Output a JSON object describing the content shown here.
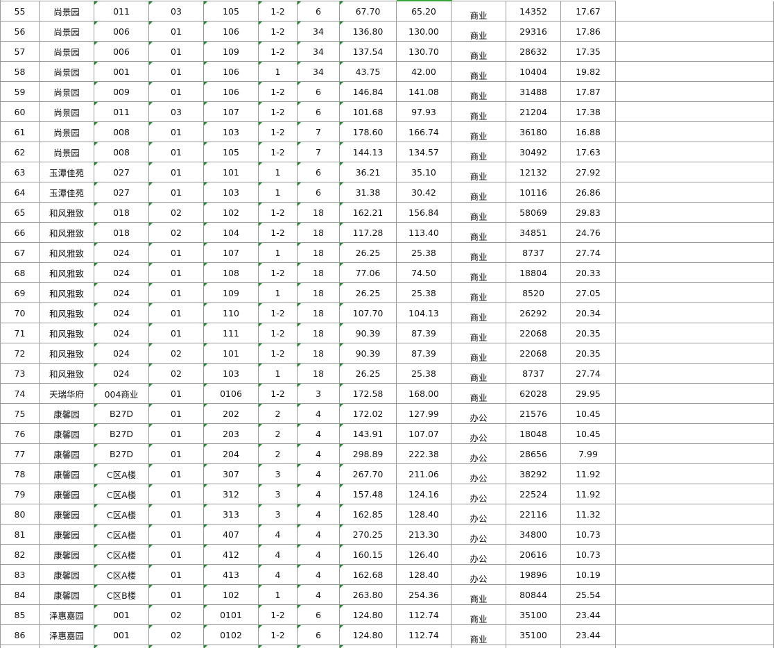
{
  "table": {
    "rows": [
      [
        "55",
        "尚景园",
        "011",
        "03",
        "105",
        "1-2",
        "6",
        "67.70",
        "65.20",
        "商业",
        "14352",
        "17.67"
      ],
      [
        "56",
        "尚景园",
        "006",
        "01",
        "106",
        "1-2",
        "34",
        "136.80",
        "130.00",
        "商业",
        "29316",
        "17.86"
      ],
      [
        "57",
        "尚景园",
        "006",
        "01",
        "109",
        "1-2",
        "34",
        "137.54",
        "130.70",
        "商业",
        "28632",
        "17.35"
      ],
      [
        "58",
        "尚景园",
        "001",
        "01",
        "106",
        "1",
        "34",
        "43.75",
        "42.00",
        "商业",
        "10404",
        "19.82"
      ],
      [
        "59",
        "尚景园",
        "009",
        "01",
        "106",
        "1-2",
        "6",
        "146.84",
        "141.08",
        "商业",
        "31488",
        "17.87"
      ],
      [
        "60",
        "尚景园",
        "011",
        "03",
        "107",
        "1-2",
        "6",
        "101.68",
        "97.93",
        "商业",
        "21204",
        "17.38"
      ],
      [
        "61",
        "尚景园",
        "008",
        "01",
        "103",
        "1-2",
        "7",
        "178.60",
        "166.74",
        "商业",
        "36180",
        "16.88"
      ],
      [
        "62",
        "尚景园",
        "008",
        "01",
        "105",
        "1-2",
        "7",
        "144.13",
        "134.57",
        "商业",
        "30492",
        "17.63"
      ],
      [
        "63",
        "玉潭佳苑",
        "027",
        "01",
        "101",
        "1",
        "6",
        "36.21",
        "35.10",
        "商业",
        "12132",
        "27.92"
      ],
      [
        "64",
        "玉潭佳苑",
        "027",
        "01",
        "103",
        "1",
        "6",
        "31.38",
        "30.42",
        "商业",
        "10116",
        "26.86"
      ],
      [
        "65",
        "和风雅致",
        "018",
        "02",
        "102",
        "1-2",
        "18",
        "162.21",
        "156.84",
        "商业",
        "58069",
        "29.83"
      ],
      [
        "66",
        "和风雅致",
        "018",
        "02",
        "104",
        "1-2",
        "18",
        "117.28",
        "113.40",
        "商业",
        "34851",
        "24.76"
      ],
      [
        "67",
        "和风雅致",
        "024",
        "01",
        "107",
        "1",
        "18",
        "26.25",
        "25.38",
        "商业",
        "8737",
        "27.74"
      ],
      [
        "68",
        "和风雅致",
        "024",
        "01",
        "108",
        "1-2",
        "18",
        "77.06",
        "74.50",
        "商业",
        "18804",
        "20.33"
      ],
      [
        "69",
        "和风雅致",
        "024",
        "01",
        "109",
        "1",
        "18",
        "26.25",
        "25.38",
        "商业",
        "8520",
        "27.05"
      ],
      [
        "70",
        "和风雅致",
        "024",
        "01",
        "110",
        "1-2",
        "18",
        "107.70",
        "104.13",
        "商业",
        "26292",
        "20.34"
      ],
      [
        "71",
        "和风雅致",
        "024",
        "01",
        "111",
        "1-2",
        "18",
        "90.39",
        "87.39",
        "商业",
        "22068",
        "20.35"
      ],
      [
        "72",
        "和风雅致",
        "024",
        "02",
        "101",
        "1-2",
        "18",
        "90.39",
        "87.39",
        "商业",
        "22068",
        "20.35"
      ],
      [
        "73",
        "和风雅致",
        "024",
        "02",
        "103",
        "1",
        "18",
        "26.25",
        "25.38",
        "商业",
        "8737",
        "27.74"
      ],
      [
        "74",
        "天瑞华府",
        "004商业",
        "01",
        "0106",
        "1-2",
        "3",
        "172.58",
        "168.00",
        "商业",
        "62028",
        "29.95"
      ],
      [
        "75",
        "康馨园",
        "B27D",
        "01",
        "202",
        "2",
        "4",
        "172.02",
        "127.99",
        "办公",
        "21576",
        "10.45"
      ],
      [
        "76",
        "康馨园",
        "B27D",
        "01",
        "203",
        "2",
        "4",
        "143.91",
        "107.07",
        "办公",
        "18048",
        "10.45"
      ],
      [
        "77",
        "康馨园",
        "B27D",
        "01",
        "204",
        "2",
        "4",
        "298.89",
        "222.38",
        "办公",
        "28656",
        "7.99"
      ],
      [
        "78",
        "康馨园",
        "C区A楼",
        "01",
        "307",
        "3",
        "4",
        "267.70",
        "211.06",
        "办公",
        "38292",
        "11.92"
      ],
      [
        "79",
        "康馨园",
        "C区A楼",
        "01",
        "312",
        "3",
        "4",
        "157.48",
        "124.16",
        "办公",
        "22524",
        "11.92"
      ],
      [
        "80",
        "康馨园",
        "C区A楼",
        "01",
        "313",
        "3",
        "4",
        "162.85",
        "128.40",
        "办公",
        "22116",
        "11.32"
      ],
      [
        "81",
        "康馨园",
        "C区A楼",
        "01",
        "407",
        "4",
        "4",
        "270.25",
        "213.30",
        "办公",
        "34800",
        "10.73"
      ],
      [
        "82",
        "康馨园",
        "C区A楼",
        "01",
        "412",
        "4",
        "4",
        "160.15",
        "126.40",
        "办公",
        "20616",
        "10.73"
      ],
      [
        "83",
        "康馨园",
        "C区A楼",
        "01",
        "413",
        "4",
        "4",
        "162.68",
        "128.40",
        "办公",
        "19896",
        "10.19"
      ],
      [
        "84",
        "康馨园",
        "C区B楼",
        "01",
        "102",
        "1",
        "4",
        "263.80",
        "254.36",
        "商业",
        "80844",
        "25.54"
      ],
      [
        "85",
        "泽惠嘉园",
        "001",
        "02",
        "0101",
        "1-2",
        "6",
        "124.80",
        "112.74",
        "商业",
        "35100",
        "23.44"
      ],
      [
        "86",
        "泽惠嘉园",
        "001",
        "02",
        "0102",
        "1-2",
        "6",
        "124.80",
        "112.74",
        "商业",
        "35100",
        "23.44"
      ]
    ]
  }
}
